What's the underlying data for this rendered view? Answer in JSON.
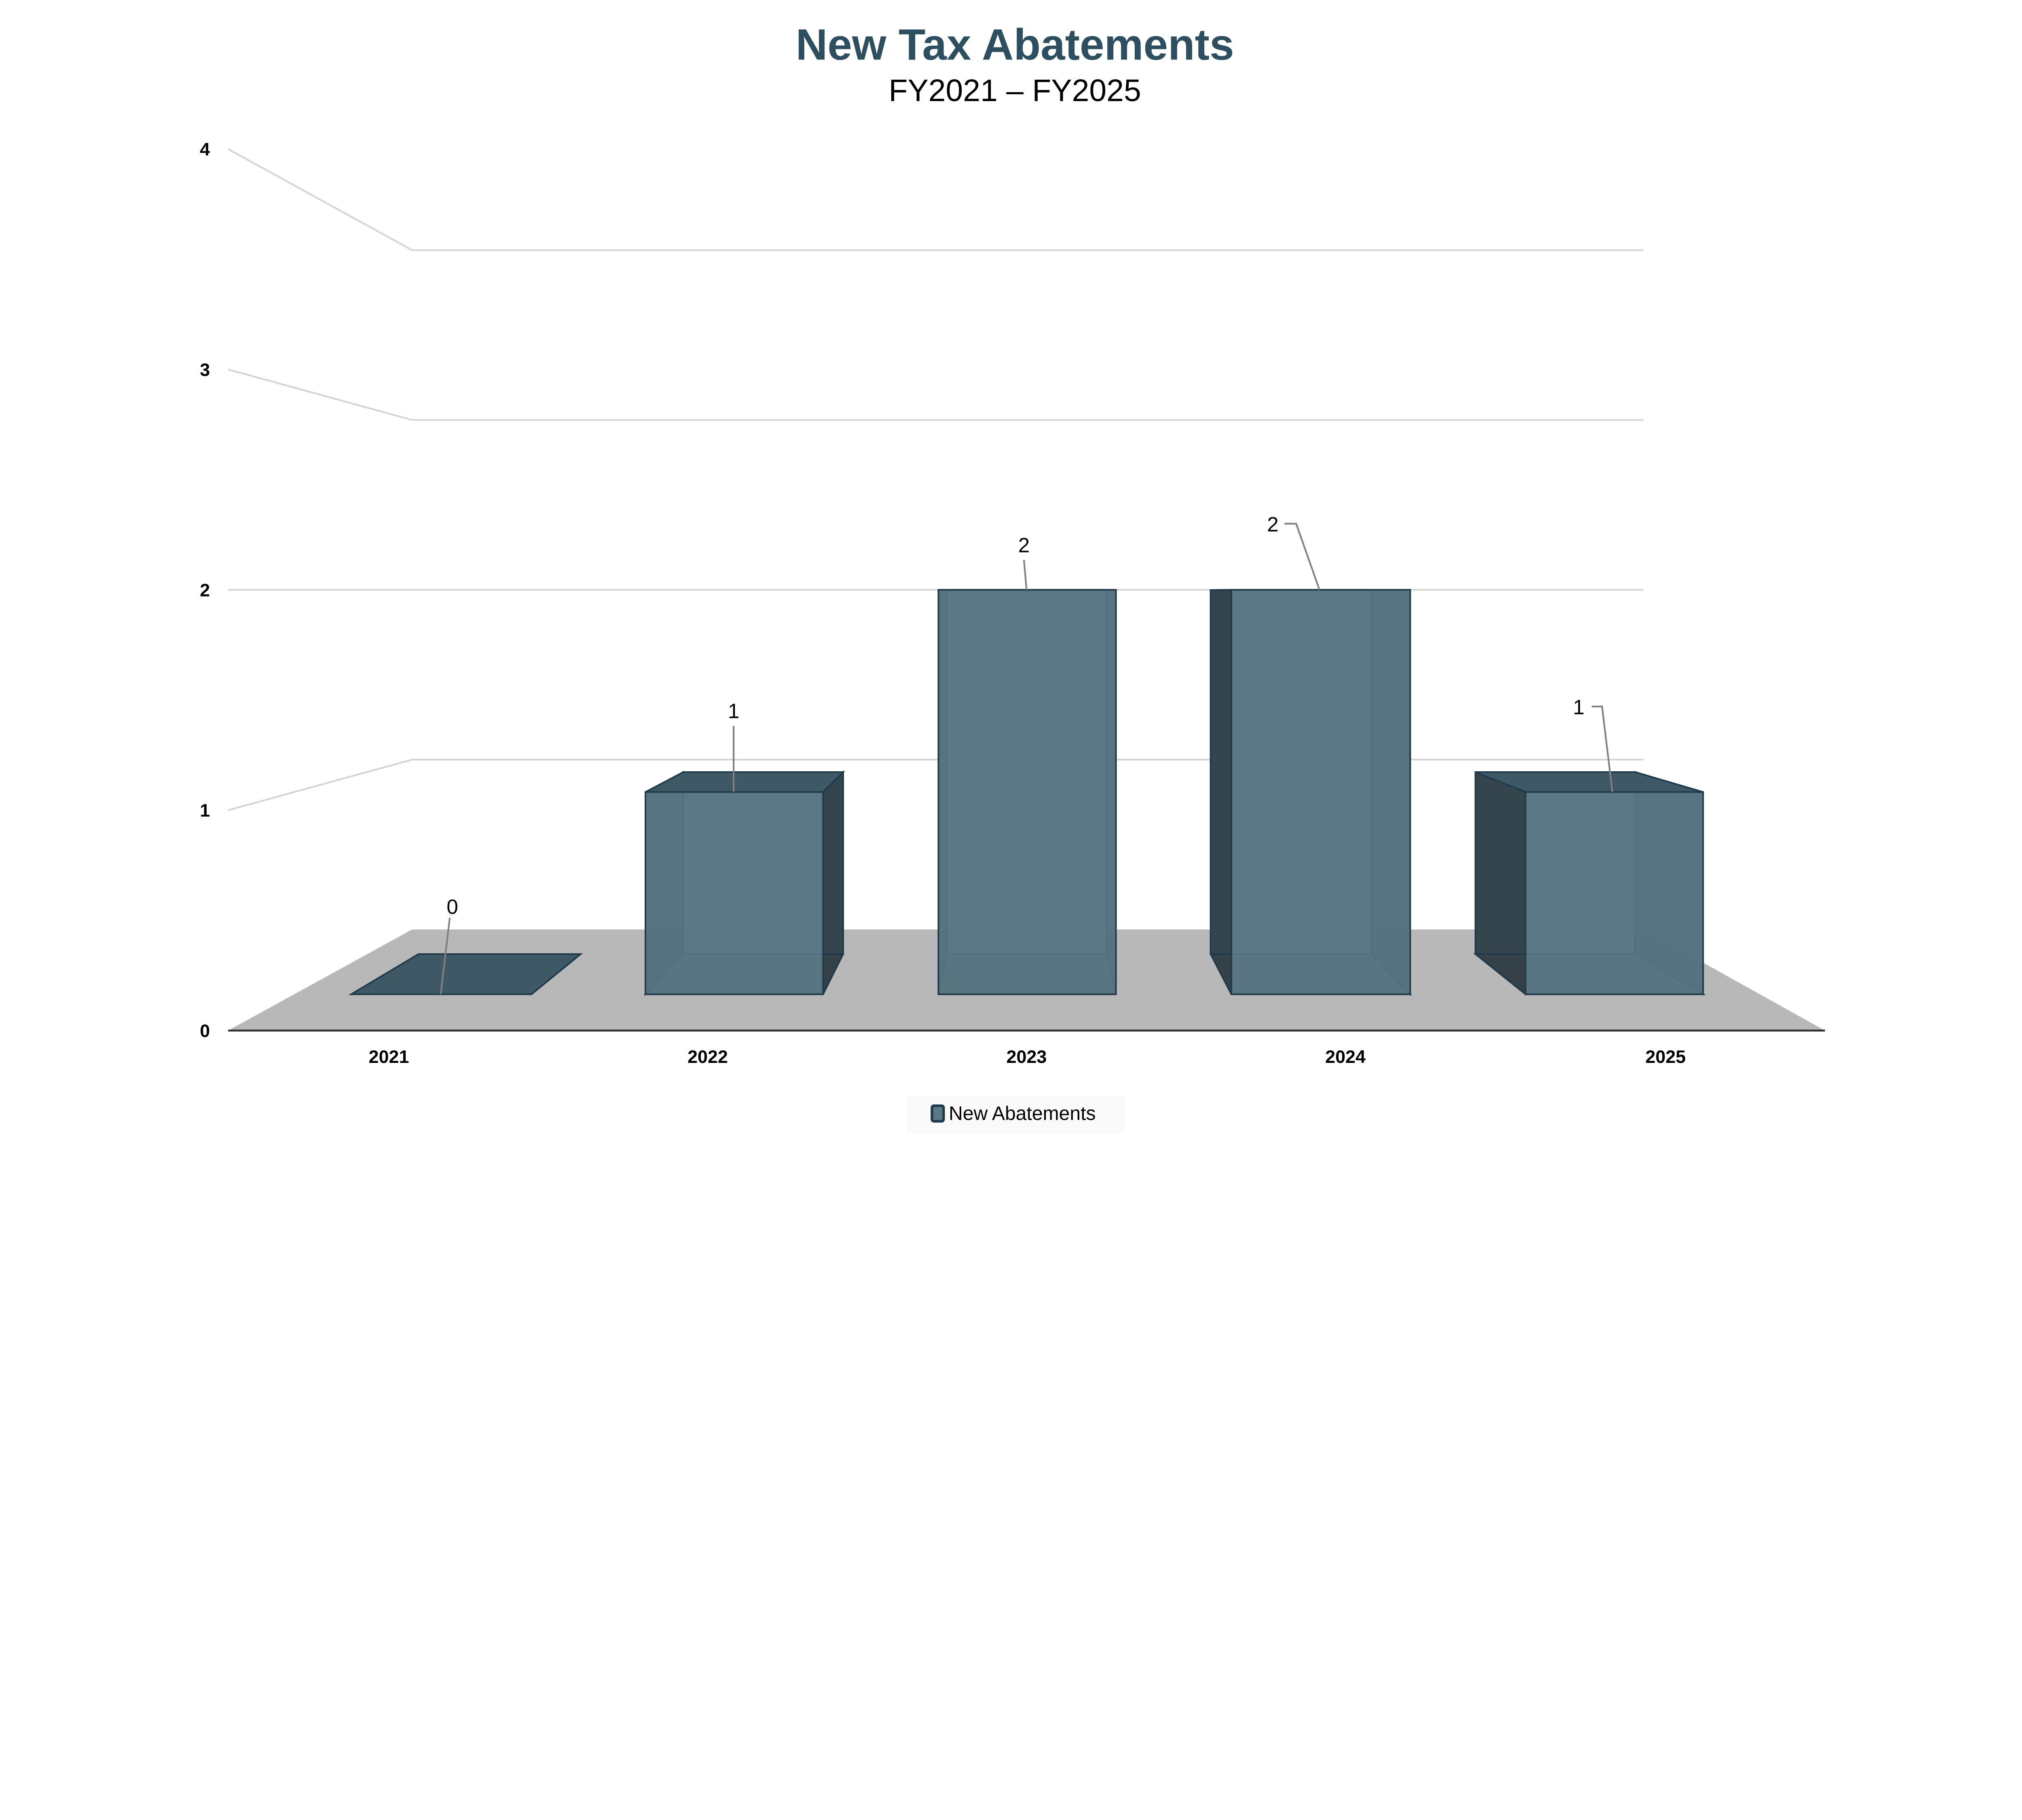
{
  "chart_data": {
    "type": "bar",
    "style": "3d",
    "title": "New Tax Abatements",
    "subtitle": "FY2021 – FY2025",
    "xlabel": "",
    "ylabel": "",
    "categories": [
      "2021",
      "2022",
      "2023",
      "2024",
      "2025"
    ],
    "series": [
      {
        "name": "New Abatements",
        "values": [
          0,
          1,
          2,
          2,
          1
        ]
      }
    ],
    "data_labels": [
      "0",
      "1",
      "2",
      "2",
      "1"
    ],
    "ylim": [
      0,
      4
    ],
    "yticks": [
      "0",
      "1",
      "2",
      "3",
      "4"
    ],
    "grid": true,
    "legend": "bottom",
    "colors": {
      "title": "#2d4f5f",
      "bar_fill": "#5a7886",
      "bar_stroke": "#1f3a4a",
      "bar_side": "#2e3c44",
      "floor": "#b8b8b8",
      "grid": "#d4d4d4"
    }
  }
}
